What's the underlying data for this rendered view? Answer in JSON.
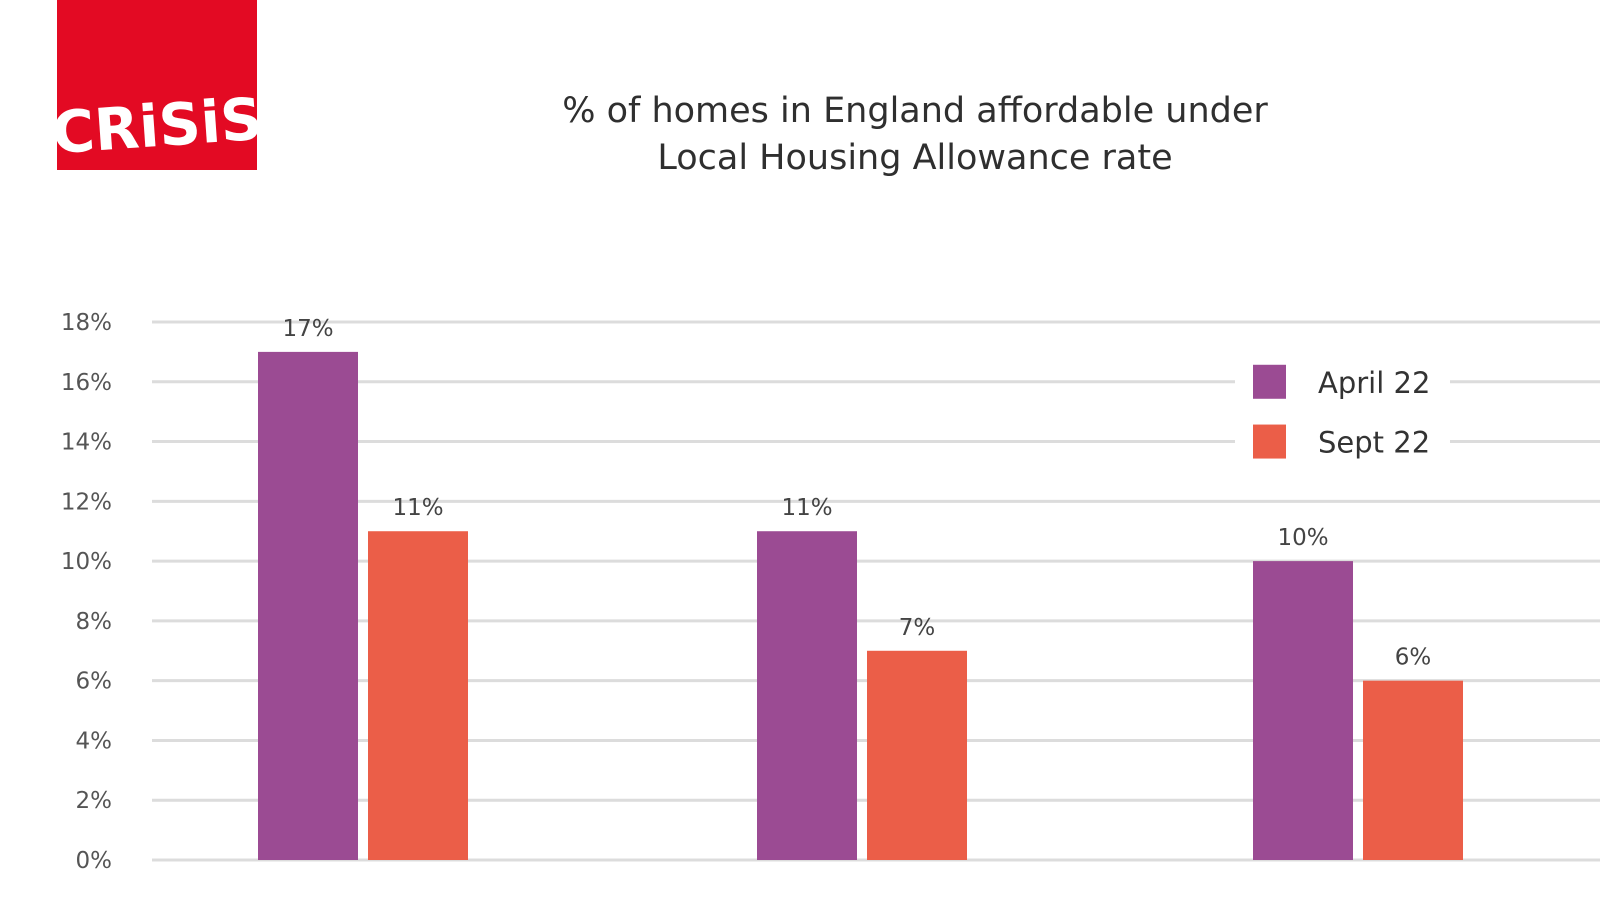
{
  "logo": {
    "text": "CRISIS",
    "color": "#e30a23"
  },
  "header": {
    "title_line1": "% of homes in England affordable under",
    "title_line2": "Local Housing Allowance rate"
  },
  "chart_data": {
    "type": "bar",
    "title": "% of homes in England affordable under Local Housing Allowance rate",
    "categories": [
      "",
      "",
      ""
    ],
    "series": [
      {
        "name": "April 22",
        "color": "#9b4b93",
        "values": [
          17,
          11,
          10
        ],
        "labels": [
          "17%",
          "11%",
          "10%"
        ]
      },
      {
        "name": "Sept 22",
        "color": "#eb5e48",
        "values": [
          11,
          7,
          6
        ],
        "labels": [
          "11%",
          "7%",
          "6%"
        ]
      }
    ],
    "ylim": [
      0,
      18
    ],
    "yticks": [
      "0%",
      "2%",
      "4%",
      "6%",
      "8%",
      "10%",
      "12%",
      "14%",
      "16%",
      "18%"
    ],
    "grid": true,
    "grid_color": "#dcdcdc",
    "legend_position": "top-right"
  }
}
